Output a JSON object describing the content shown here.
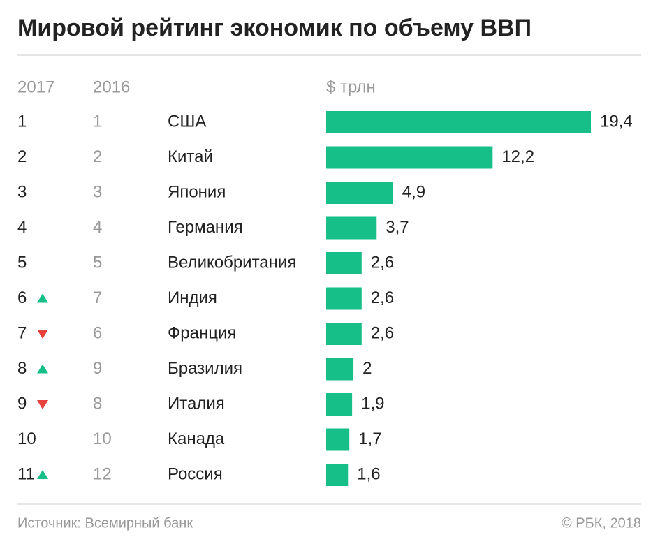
{
  "chart_data": {
    "type": "bar",
    "title": "Мировой рейтинг экономик по объему ВВП",
    "column_headers": [
      "2017",
      "2016",
      "$ трлн"
    ],
    "rank_2017": [
      1,
      2,
      3,
      4,
      5,
      6,
      7,
      8,
      9,
      10,
      11
    ],
    "rank_2016": [
      1,
      2,
      3,
      4,
      5,
      7,
      6,
      9,
      8,
      10,
      12
    ],
    "categories": [
      "США",
      "Китай",
      "Япония",
      "Германия",
      "Великобритания",
      "Индия",
      "Франция",
      "Бразилия",
      "Италия",
      "Канада",
      "Россия"
    ],
    "values": [
      19.4,
      12.2,
      4.9,
      3.7,
      2.6,
      2.6,
      2.6,
      2,
      1.9,
      1.7,
      1.6
    ],
    "value_labels": [
      "19,4",
      "12,2",
      "4,9",
      "3,7",
      "2,6",
      "2,6",
      "2,6",
      "2",
      "1,9",
      "1,7",
      "1,6"
    ],
    "color": "#17bf88",
    "up_color": "#17bf88",
    "down_color": "#e8413c",
    "source": "Источник: Всемирный банк",
    "credit": "© РБК, 2018"
  }
}
